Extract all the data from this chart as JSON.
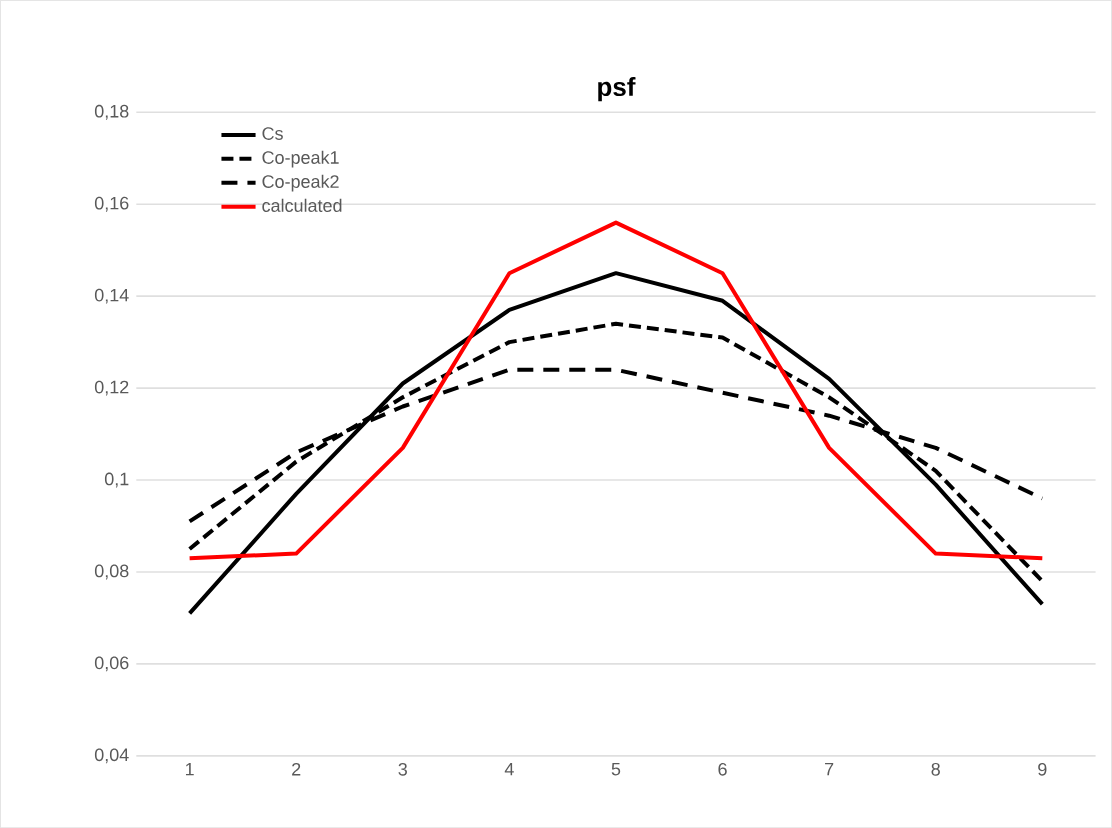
{
  "chart_data": {
    "type": "line",
    "title": "psf",
    "categories": [
      "1",
      "2",
      "3",
      "4",
      "5",
      "6",
      "7",
      "8",
      "9"
    ],
    "series": [
      {
        "name": "Cs",
        "color": "#000000",
        "line_style": "solid",
        "values": [
          0.071,
          0.097,
          0.121,
          0.137,
          0.145,
          0.139,
          0.122,
          0.099,
          0.073
        ]
      },
      {
        "name": "Co-peak1",
        "color": "#000000",
        "line_style": "dashed",
        "values": [
          0.085,
          0.104,
          0.118,
          0.13,
          0.134,
          0.131,
          0.118,
          0.102,
          0.078
        ]
      },
      {
        "name": "Co-peak2",
        "color": "#000000",
        "line_style": "dashed",
        "values": [
          0.091,
          0.106,
          0.116,
          0.124,
          0.124,
          0.119,
          0.114,
          0.107,
          0.096
        ]
      },
      {
        "name": "calculated",
        "color": "#ff0000",
        "line_style": "solid",
        "values": [
          0.083,
          0.084,
          0.107,
          0.145,
          0.156,
          0.145,
          0.107,
          0.084,
          0.083
        ]
      }
    ],
    "ylim": [
      0.04,
      0.18
    ],
    "yticks": [
      {
        "value": 0.04,
        "label": "0,04"
      },
      {
        "value": 0.06,
        "label": "0,06"
      },
      {
        "value": 0.08,
        "label": "0,08"
      },
      {
        "value": 0.1,
        "label": "0,1"
      },
      {
        "value": 0.12,
        "label": "0,12"
      },
      {
        "value": 0.14,
        "label": "0,14"
      },
      {
        "value": 0.16,
        "label": "0,16"
      },
      {
        "value": 0.18,
        "label": "0,18"
      }
    ],
    "grid": "y",
    "legend": "top left",
    "marker": "none"
  }
}
